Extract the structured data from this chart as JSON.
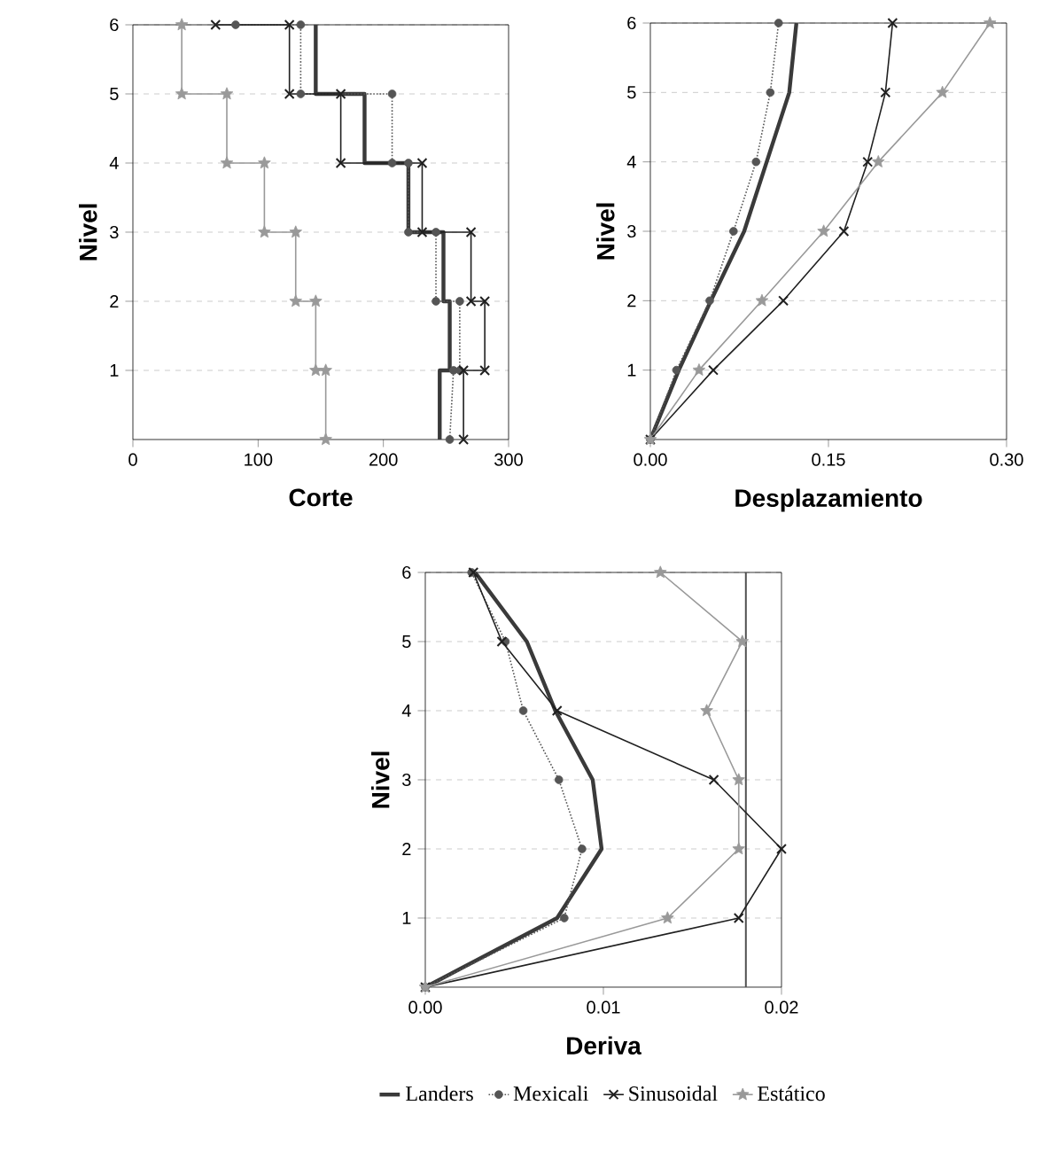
{
  "chart_data": [
    {
      "type": "line",
      "xlabel": "Corte",
      "ylabel": "Nivel",
      "xlim": [
        0,
        300
      ],
      "xticks": [
        0,
        100,
        200,
        300
      ],
      "ylim": [
        0,
        6
      ],
      "yticks": [
        1,
        2,
        3,
        4,
        5,
        6
      ],
      "grid": "y",
      "legend": false,
      "series": [
        {
          "color": "#3a3a3a",
          "marker": "none",
          "line_style": "solid",
          "x": [
            245,
            245,
            253,
            253,
            248,
            248,
            220,
            220,
            185,
            185,
            146,
            146
          ],
          "values": [
            0,
            1,
            1,
            2,
            2,
            3,
            3,
            4,
            4,
            5,
            5,
            6
          ]
        },
        {
          "color": "#555555",
          "marker": "circle",
          "line_style": "dotted",
          "x": [
            253,
            256,
            261,
            261,
            242,
            242,
            220,
            220,
            207,
            207,
            134,
            134,
            82
          ],
          "values": [
            0,
            1,
            1,
            2,
            2,
            3,
            3,
            4,
            4,
            5,
            5,
            6,
            6
          ]
        },
        {
          "color": "#202020",
          "marker": "cross",
          "line_style": "solid",
          "x": [
            264,
            264,
            281,
            281,
            270,
            270,
            231,
            231,
            166,
            166,
            125,
            125,
            66
          ],
          "values": [
            0,
            1,
            1,
            2,
            2,
            3,
            3,
            4,
            4,
            5,
            5,
            6,
            6
          ]
        },
        {
          "color": "#999999",
          "marker": "star",
          "line_style": "solid",
          "x": [
            154,
            154,
            146,
            146,
            130,
            130,
            105,
            105,
            75,
            75,
            39,
            39
          ],
          "values": [
            0,
            1,
            1,
            2,
            2,
            3,
            3,
            4,
            4,
            5,
            5,
            6
          ]
        }
      ]
    },
    {
      "type": "line",
      "xlabel": "Desplazamiento",
      "ylabel": "Nivel",
      "xlim": [
        0,
        0.3
      ],
      "xticks": [
        {
          "value": 0,
          "label": "0.00"
        },
        {
          "value": 0.15,
          "label": "0.15"
        },
        {
          "value": 0.3,
          "label": "0.30"
        }
      ],
      "ylim": [
        0,
        6
      ],
      "yticks": [
        1,
        2,
        3,
        4,
        5,
        6
      ],
      "grid": "y",
      "legend": false,
      "series": [
        {
          "color": "#3a3a3a",
          "marker": "none",
          "line_style": "solid",
          "x": [
            0,
            0.024,
            0.051,
            0.079,
            0.098,
            0.117,
            0.123
          ],
          "values": [
            0,
            1,
            2,
            3,
            4,
            5,
            6
          ]
        },
        {
          "color": "#555555",
          "marker": "circle",
          "line_style": "dotted",
          "x": [
            0,
            0.022,
            0.05,
            0.07,
            0.089,
            0.101,
            0.108
          ],
          "values": [
            0,
            1,
            2,
            3,
            4,
            5,
            6
          ]
        },
        {
          "color": "#202020",
          "marker": "cross",
          "line_style": "solid",
          "x": [
            0,
            0.053,
            0.112,
            0.163,
            0.183,
            0.198,
            0.204
          ],
          "values": [
            0,
            1,
            2,
            3,
            4,
            5,
            6
          ]
        },
        {
          "color": "#999999",
          "marker": "star",
          "line_style": "solid",
          "x": [
            0,
            0.041,
            0.094,
            0.146,
            0.192,
            0.246,
            0.286
          ],
          "values": [
            0,
            1,
            2,
            3,
            4,
            5,
            6
          ]
        }
      ]
    },
    {
      "type": "line",
      "xlabel": "Deriva",
      "ylabel": "Nivel",
      "xlim": [
        0,
        0.02
      ],
      "xticks": [
        {
          "value": 0,
          "label": "0.00"
        },
        {
          "value": 0.01,
          "label": "0.01"
        },
        {
          "value": 0.02,
          "label": "0.02"
        }
      ],
      "ylim": [
        0,
        6
      ],
      "yticks": [
        1,
        2,
        3,
        4,
        5,
        6
      ],
      "grid": "y",
      "legend": "bottom",
      "ref_lines": [
        {
          "axis": "x",
          "value": 0.018,
          "color": "#505050"
        }
      ],
      "series": [
        {
          "name": "Landers",
          "color": "#3a3a3a",
          "marker": "none",
          "line_style": "solid",
          "x": [
            0,
            0.0074,
            0.0099,
            0.0094,
            0.0073,
            0.0057,
            0.0028
          ],
          "values": [
            0,
            1,
            2,
            3,
            4,
            5,
            6
          ]
        },
        {
          "name": "Mexicali",
          "color": "#555555",
          "marker": "circle",
          "line_style": "dotted",
          "x": [
            0,
            0.0078,
            0.0088,
            0.0075,
            0.0055,
            0.0045,
            0.0026
          ],
          "values": [
            0,
            1,
            2,
            3,
            4,
            5,
            6
          ]
        },
        {
          "name": "Sinusoidal",
          "color": "#202020",
          "marker": "cross",
          "line_style": "solid",
          "x": [
            0,
            0.0176,
            0.02,
            0.0162,
            0.0074,
            0.0043,
            0.0027
          ],
          "values": [
            0,
            1,
            2,
            3,
            4,
            5,
            6
          ]
        },
        {
          "name": "Estático",
          "color": "#999999",
          "marker": "star",
          "line_style": "solid",
          "x": [
            0,
            0.0136,
            0.0176,
            0.0176,
            0.0158,
            0.0178,
            0.0132
          ],
          "values": [
            0,
            1,
            2,
            3,
            4,
            5,
            6
          ]
        }
      ]
    }
  ]
}
